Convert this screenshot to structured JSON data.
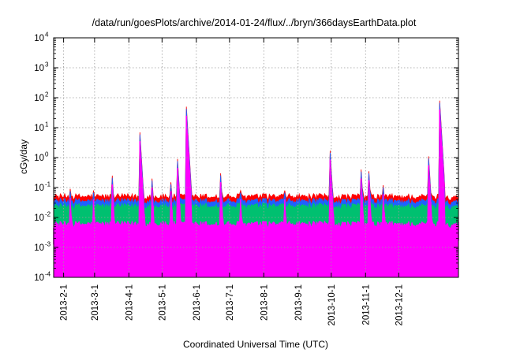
{
  "chart_data": {
    "type": "line",
    "title": "/data/run/goesPlots/archive/2014-01-24/flux/../bryn/366daysEarthData.plot",
    "xlabel": "Coordinated Universal Time (UTC)",
    "ylabel": "cGy/day",
    "yscale": "log",
    "ylim": [
      0.0001,
      10000
    ],
    "xlim": [
      "2013-01-23",
      "2014-01-24"
    ],
    "grid": true,
    "legend": "none",
    "x_ticks": [
      "2013-2-1",
      "2013-3-1",
      "2013-4-1",
      "2013-5-1",
      "2013-6-1",
      "2013-7-1",
      "2013-8-1",
      "2013-9-1",
      "2013-10-1",
      "2013-11-1",
      "2013-12-1"
    ],
    "y_ticks": [
      {
        "base": "10",
        "exp": "-4"
      },
      {
        "base": "10",
        "exp": "-3"
      },
      {
        "base": "10",
        "exp": "-2"
      },
      {
        "base": "10",
        "exp": "-1"
      },
      {
        "base": "10",
        "exp": "0"
      },
      {
        "base": "10",
        "exp": "1"
      },
      {
        "base": "10",
        "exp": "2"
      },
      {
        "base": "10",
        "exp": "3"
      },
      {
        "base": "10",
        "exp": "4"
      }
    ],
    "events": [
      {
        "date": "2013-02-07",
        "peak": 0.09
      },
      {
        "date": "2013-02-28",
        "peak": 0.08
      },
      {
        "date": "2013-03-17",
        "peak": 0.25
      },
      {
        "date": "2013-04-11",
        "peak": 7
      },
      {
        "date": "2013-04-22",
        "peak": 0.2
      },
      {
        "date": "2013-05-09",
        "peak": 0.15
      },
      {
        "date": "2013-05-15",
        "peak": 0.9
      },
      {
        "date": "2013-05-23",
        "peak": 50
      },
      {
        "date": "2013-06-23",
        "peak": 0.3
      },
      {
        "date": "2013-07-11",
        "peak": 0.08
      },
      {
        "date": "2013-08-20",
        "peak": 0.08
      },
      {
        "date": "2013-09-30",
        "peak": 1.7
      },
      {
        "date": "2013-10-28",
        "peak": 0.4
      },
      {
        "date": "2013-11-04",
        "peak": 0.35
      },
      {
        "date": "2013-11-17",
        "peak": 0.12
      },
      {
        "date": "2013-12-28",
        "peak": 1.1
      },
      {
        "date": "2014-01-07",
        "peak": 80
      }
    ],
    "series": [
      {
        "color": "#ff0000",
        "baseline": 0.05
      },
      {
        "color": "#2060ff",
        "baseline": 0.035
      },
      {
        "color": "#00c070",
        "baseline": 0.024
      },
      {
        "color": "#ff00ff",
        "baseline": 0.006
      }
    ]
  }
}
